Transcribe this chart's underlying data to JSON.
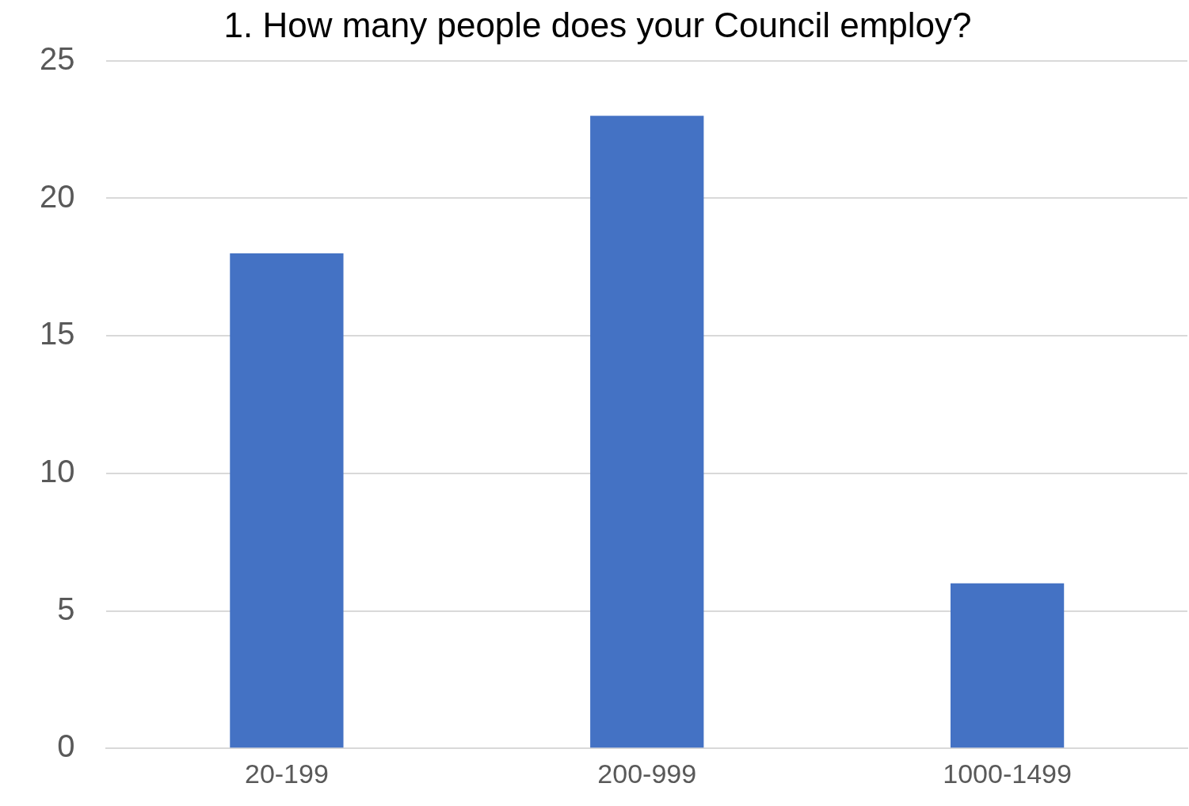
{
  "chart_data": {
    "type": "bar",
    "title": "1. How many people does your Council employ?",
    "categories": [
      "20-199",
      "200-999",
      "1000-1499"
    ],
    "values": [
      18,
      23,
      6
    ],
    "color": "#4472c4",
    "ylim": [
      0,
      25
    ],
    "yticks": [
      0,
      5,
      10,
      15,
      20,
      25
    ],
    "grid": "y",
    "legend": false
  }
}
